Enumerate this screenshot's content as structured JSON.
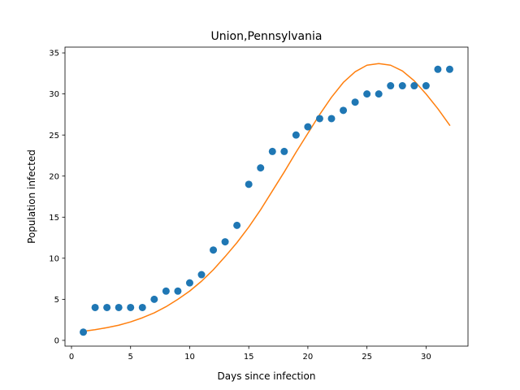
{
  "chart_data": {
    "type": "scatter",
    "title": "Union,Pennsylvania",
    "xlabel": "Days since infection",
    "ylabel": "Population infected",
    "xlim": [
      -0.55,
      33.55
    ],
    "ylim": [
      -0.7,
      35.7
    ],
    "xticks": [
      0,
      5,
      10,
      15,
      20,
      25,
      30
    ],
    "yticks": [
      0,
      5,
      10,
      15,
      20,
      25,
      30,
      35
    ],
    "grid": false,
    "series": [
      {
        "kind": "scatter",
        "color": "#1f77b4",
        "x": [
          1,
          2,
          3,
          4,
          5,
          6,
          7,
          8,
          9,
          10,
          11,
          12,
          13,
          14,
          15,
          16,
          17,
          18,
          19,
          20,
          21,
          22,
          23,
          24,
          25,
          26,
          27,
          28,
          29,
          30,
          31,
          32
        ],
        "y": [
          1,
          4,
          4,
          4,
          4,
          4,
          5,
          6,
          6,
          7,
          8,
          11,
          12,
          14,
          19,
          21,
          23,
          23,
          25,
          26,
          27,
          27,
          28,
          29,
          30,
          30,
          31,
          31,
          31,
          31,
          33,
          33
        ]
      },
      {
        "kind": "line",
        "color": "#ff7f0e",
        "x": [
          1,
          2,
          3,
          4,
          5,
          6,
          7,
          8,
          9,
          10,
          11,
          12,
          13,
          14,
          15,
          16,
          17,
          18,
          19,
          20,
          21,
          22,
          23,
          24,
          25,
          26,
          27,
          28,
          29,
          30,
          31,
          32
        ],
        "y": [
          1.1,
          1.3,
          1.55,
          1.85,
          2.25,
          2.75,
          3.35,
          4.1,
          5.0,
          6.0,
          7.2,
          8.6,
          10.2,
          11.9,
          13.8,
          15.9,
          18.2,
          20.5,
          22.9,
          25.2,
          27.5,
          29.6,
          31.4,
          32.7,
          33.5,
          33.7,
          33.5,
          32.8,
          31.6,
          30.0,
          28.2,
          26.2
        ]
      }
    ]
  }
}
